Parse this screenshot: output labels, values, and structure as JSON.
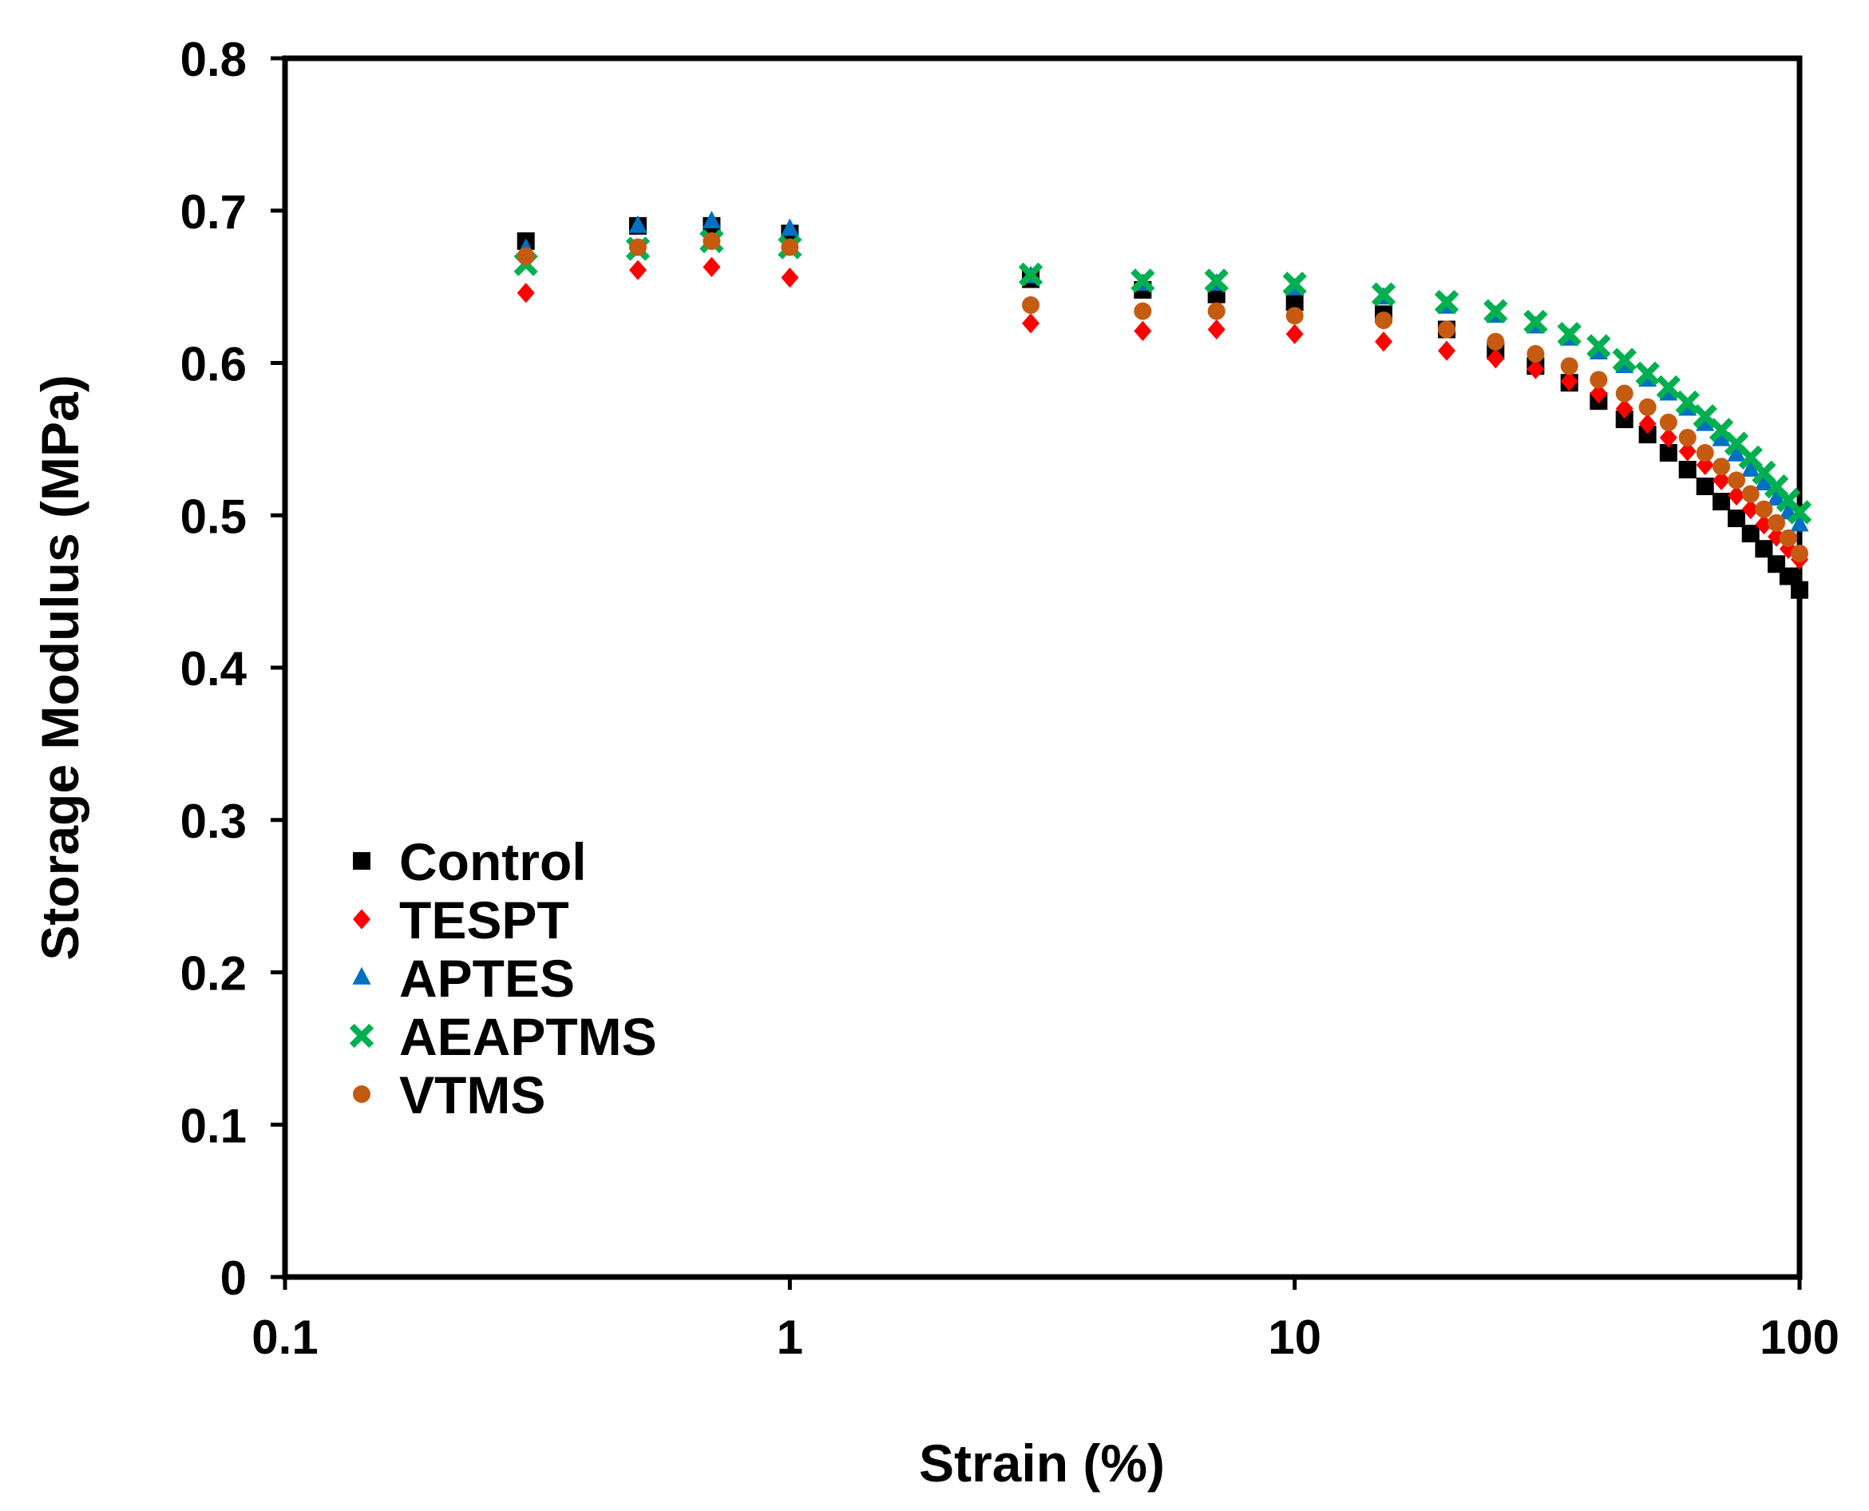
{
  "chart_data": {
    "type": "scatter",
    "title": "",
    "xlabel": "Strain (%)",
    "ylabel": "Storage Modulus (MPa)",
    "xscale": "log",
    "xlim": [
      0.1,
      100
    ],
    "ylim": [
      0,
      0.8
    ],
    "grid": false,
    "legend_position": "bottom-left",
    "x_ticks": [
      {
        "value": 0.1,
        "label": "0.1"
      },
      {
        "value": 1,
        "label": "1"
      },
      {
        "value": 10,
        "label": "10"
      },
      {
        "value": 100,
        "label": "100"
      }
    ],
    "y_ticks": [
      {
        "value": 0,
        "label": "0"
      },
      {
        "value": 0.1,
        "label": "0.1"
      },
      {
        "value": 0.2,
        "label": "0.2"
      },
      {
        "value": 0.3,
        "label": "0.3"
      },
      {
        "value": 0.4,
        "label": "0.4"
      },
      {
        "value": 0.5,
        "label": "0.5"
      },
      {
        "value": 0.6,
        "label": "0.6"
      },
      {
        "value": 0.7,
        "label": "0.7"
      },
      {
        "value": 0.8,
        "label": "0.8"
      }
    ],
    "x": [
      0.3,
      0.5,
      0.7,
      1,
      3,
      5,
      7,
      10,
      15,
      20,
      25,
      30,
      35,
      40,
      45,
      50,
      55,
      60,
      65,
      70,
      75,
      80,
      85,
      90,
      95,
      100
    ],
    "series": [
      {
        "name": "Control",
        "color": "#000000",
        "marker": "square",
        "values": [
          0.68,
          0.69,
          0.69,
          0.685,
          0.655,
          0.648,
          0.645,
          0.64,
          0.632,
          0.622,
          0.608,
          0.598,
          0.587,
          0.575,
          0.563,
          0.553,
          0.541,
          0.53,
          0.519,
          0.509,
          0.498,
          0.488,
          0.478,
          0.468,
          0.46,
          0.451
        ]
      },
      {
        "name": "TESPT",
        "color": "#ff0000",
        "marker": "diamond",
        "values": [
          0.646,
          0.661,
          0.663,
          0.656,
          0.626,
          0.621,
          0.622,
          0.619,
          0.614,
          0.608,
          0.603,
          0.596,
          0.588,
          0.58,
          0.57,
          0.56,
          0.551,
          0.542,
          0.533,
          0.523,
          0.513,
          0.504,
          0.494,
          0.486,
          0.478,
          0.471
        ]
      },
      {
        "name": "APTES",
        "color": "#0070c0",
        "marker": "triangle",
        "values": [
          0.675,
          0.69,
          0.693,
          0.688,
          0.657,
          0.652,
          0.652,
          0.649,
          0.643,
          0.637,
          0.631,
          0.624,
          0.616,
          0.607,
          0.598,
          0.589,
          0.58,
          0.57,
          0.56,
          0.55,
          0.54,
          0.53,
          0.521,
          0.511,
          0.502,
          0.494
        ]
      },
      {
        "name": "AEAPTMS",
        "color": "#00b050",
        "marker": "x",
        "values": [
          0.665,
          0.675,
          0.68,
          0.676,
          0.658,
          0.654,
          0.654,
          0.652,
          0.645,
          0.64,
          0.634,
          0.627,
          0.619,
          0.611,
          0.602,
          0.593,
          0.584,
          0.574,
          0.565,
          0.556,
          0.547,
          0.538,
          0.528,
          0.519,
          0.51,
          0.502
        ]
      },
      {
        "name": "VTMS",
        "color": "#c55a11",
        "marker": "circle",
        "values": [
          0.67,
          0.676,
          0.68,
          0.676,
          0.638,
          0.634,
          0.634,
          0.631,
          0.628,
          0.622,
          0.614,
          0.606,
          0.598,
          0.589,
          0.58,
          0.571,
          0.561,
          0.551,
          0.541,
          0.532,
          0.523,
          0.514,
          0.504,
          0.495,
          0.485,
          0.475
        ]
      }
    ]
  }
}
